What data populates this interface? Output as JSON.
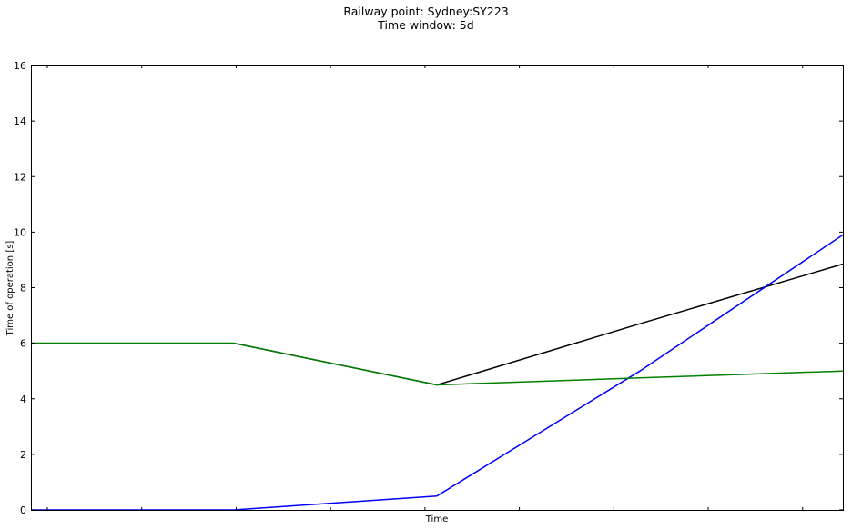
{
  "chart_data": {
    "type": "line",
    "title": "Railway point: Sydney:SY223",
    "subtitle": "Time window: 5d",
    "xlabel": "Time",
    "ylabel": "Time of operation [s]",
    "ylim": [
      0,
      16
    ],
    "yticks": [
      0,
      2,
      4,
      6,
      8,
      10,
      12,
      14,
      16
    ],
    "grid": false,
    "legend": "none",
    "x": [
      0,
      1,
      2,
      3,
      4
    ],
    "series": [
      {
        "color": "#000000",
        "values": [
          6,
          6,
          4.5,
          6.7,
          8.85
        ]
      },
      {
        "color": "#0000ff",
        "values": [
          0,
          0,
          0.5,
          5.0,
          9.9
        ]
      },
      {
        "color": "#008000",
        "values": [
          6,
          6,
          4.5,
          4.75,
          5.0
        ]
      }
    ]
  }
}
